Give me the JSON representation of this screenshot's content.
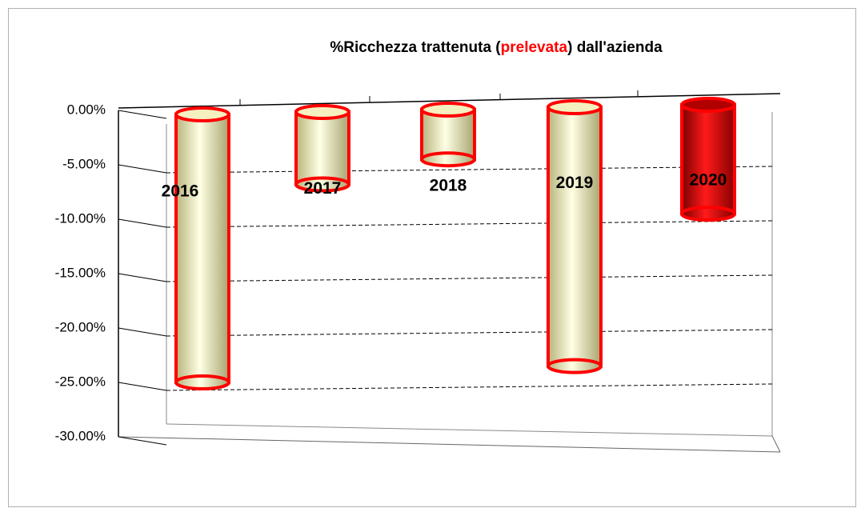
{
  "chart_data": {
    "type": "bar",
    "title_parts": [
      {
        "text": "%Ricchezza trattenuta (",
        "color": "#000000"
      },
      {
        "text": "prelevata",
        "color": "#ff0000"
      },
      {
        "text": ") dall'azienda",
        "color": "#000000"
      }
    ],
    "categories": [
      "2016",
      "2017",
      "2018",
      "2019",
      "2020"
    ],
    "values": [
      -25,
      -6.8,
      -4.5,
      -23.5,
      -9.5
    ],
    "colors": [
      "cream",
      "cream",
      "cream",
      "cream",
      "red"
    ],
    "ylim": [
      -30,
      0
    ],
    "yticks": [
      {
        "value": 0,
        "label": "0.00%"
      },
      {
        "value": -5,
        "label": "-5.00%"
      },
      {
        "value": -10,
        "label": "-10.00%"
      },
      {
        "value": -15,
        "label": "-15.00%"
      },
      {
        "value": -20,
        "label": "-20.00%"
      },
      {
        "value": -25,
        "label": "-25.00%"
      },
      {
        "value": -30,
        "label": "-30.00%"
      }
    ],
    "grid": true
  }
}
